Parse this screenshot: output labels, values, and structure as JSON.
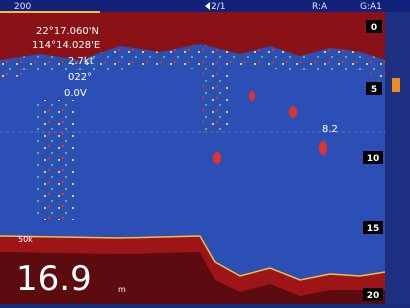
{
  "header": {
    "range": "200",
    "page": "2/1",
    "mode": "R:A",
    "gain": "G:A1"
  },
  "readout": {
    "latitude": "22°17.060'N",
    "longitude": "114°14.028'E",
    "speed": "2.7kt",
    "heading": "022°",
    "voltage": "0.0V"
  },
  "depth_scale": [
    "0",
    "5",
    "10",
    "15",
    "20"
  ],
  "marker": "8.2",
  "frequency": "50k",
  "depth": {
    "value": "16.9",
    "unit": "m"
  }
}
